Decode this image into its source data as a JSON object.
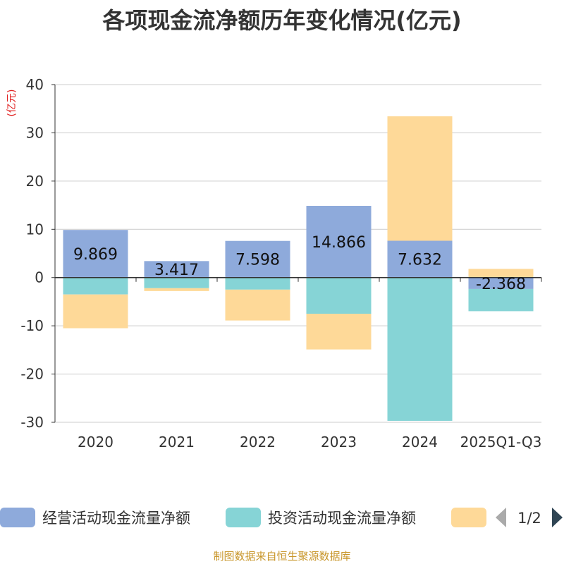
{
  "chart_data": {
    "type": "bar",
    "stacked": true,
    "title": "各项现金流净额历年变化情况(亿元)",
    "ylabel": "(亿元)",
    "ylim": [
      -30,
      40
    ],
    "yticks": [
      40,
      30,
      20,
      10,
      0,
      -10,
      -20,
      -30
    ],
    "categories": [
      "2020",
      "2021",
      "2022",
      "2023",
      "2024",
      "2025Q1-Q3"
    ],
    "series": [
      {
        "name": "经营活动现金流量净额",
        "color": "#8eaadb",
        "values": [
          9.869,
          3.417,
          7.598,
          14.866,
          7.632,
          -2.368
        ]
      },
      {
        "name": "投资活动现金流量净额",
        "color": "#86d4d6",
        "values": [
          -3.5,
          -2.2,
          -2.5,
          -7.5,
          -29.7,
          -4.6
        ]
      },
      {
        "name": "",
        "color": "#fed998",
        "values": [
          -7.0,
          -0.6,
          -6.4,
          -7.4,
          25.8,
          1.8
        ]
      }
    ],
    "data_labels": [
      "9.869",
      "3.417",
      "7.598",
      "14.866",
      "7.632",
      "-2.368"
    ],
    "legend": {
      "position": "bottom",
      "page": "1/2"
    },
    "grid": true
  },
  "source": "制图数据来自恒生聚源数据库",
  "colors": {
    "axis": "#333333",
    "grid": "#cccccc",
    "ylabel": "#e02020",
    "text": "#333333",
    "pager_active": "#2f4554",
    "pager_inactive": "#aaaaaa"
  }
}
